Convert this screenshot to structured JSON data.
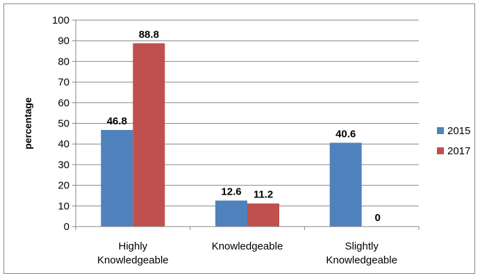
{
  "chart_data": {
    "type": "bar",
    "title": "",
    "xlabel": "",
    "ylabel": "percentage",
    "ylim": [
      0,
      100
    ],
    "yticks": [
      0,
      10,
      20,
      30,
      40,
      50,
      60,
      70,
      80,
      90,
      100
    ],
    "categories": [
      [
        "Highly",
        "Knowledgeable"
      ],
      [
        "Knowledgeable"
      ],
      [
        "Slightly",
        "Knowledgeable"
      ]
    ],
    "series": [
      {
        "name": "2015",
        "color": "#4F81BD",
        "values": [
          46.8,
          12.6,
          40.6
        ]
      },
      {
        "name": "2017",
        "color": "#C0504D",
        "values": [
          88.8,
          11.2,
          0
        ]
      }
    ],
    "grid": true,
    "legend": "right"
  }
}
